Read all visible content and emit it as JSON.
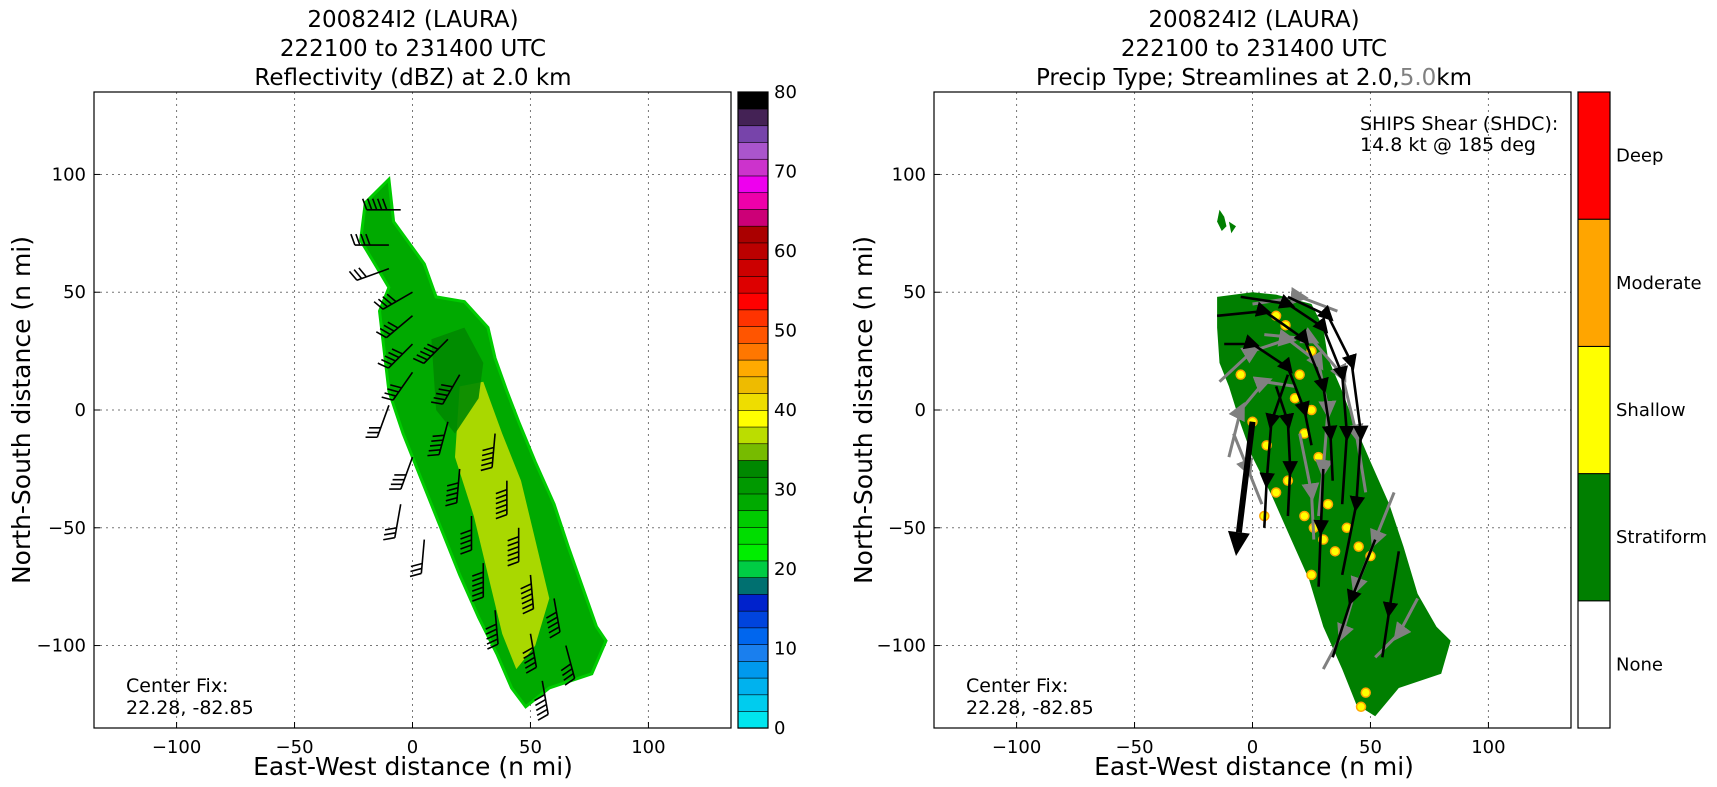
{
  "chart_data": [
    {
      "type": "heatmap",
      "title_lines": [
        "200824I2 (LAURA)",
        "222100 to 231400 UTC",
        "Reflectivity (dBZ) at 2.0 km"
      ],
      "xlabel": "East-West distance (n mi)",
      "ylabel": "North-South distance (n mi)",
      "xlim": [
        -135,
        135
      ],
      "ylim": [
        -135,
        135
      ],
      "xticks": [
        -100,
        -50,
        0,
        50,
        100
      ],
      "yticks": [
        -100,
        -50,
        0,
        50,
        100
      ],
      "grid": true,
      "annotation_lines": [
        "Center Fix:",
        "22.28, -82.85"
      ],
      "colorbar": {
        "range": [
          0,
          80
        ],
        "ticks": [
          0,
          10,
          20,
          30,
          40,
          50,
          60,
          70,
          80
        ],
        "colors": [
          "#00e5ee",
          "#00ccee",
          "#00b2ee",
          "#0099ee",
          "#1a7fee",
          "#0066ee",
          "#0044dd",
          "#0022cc",
          "#007070",
          "#00cc44",
          "#00ee00",
          "#00dd00",
          "#00cc00",
          "#00aa00",
          "#009900",
          "#008800",
          "#77bb00",
          "#bbdd00",
          "#ffff00",
          "#eedd00",
          "#eebb00",
          "#ffaa00",
          "#ff7700",
          "#ff5500",
          "#ff3300",
          "#ff0000",
          "#dd0000",
          "#cc0000",
          "#bb0000",
          "#aa0000",
          "#cc0077",
          "#ee00aa",
          "#ee00ee",
          "#cc33cc",
          "#aa55cc",
          "#7744aa",
          "#442255",
          "#000000"
        ]
      },
      "echo_region_polygon": [
        [
          -20,
          88
        ],
        [
          -10,
          98
        ],
        [
          -8,
          80
        ],
        [
          5,
          62
        ],
        [
          10,
          48
        ],
        [
          22,
          46
        ],
        [
          32,
          35
        ],
        [
          35,
          22
        ],
        [
          40,
          8
        ],
        [
          45,
          -5
        ],
        [
          52,
          -22
        ],
        [
          60,
          -40
        ],
        [
          66,
          -58
        ],
        [
          72,
          -75
        ],
        [
          78,
          -92
        ],
        [
          82,
          -98
        ],
        [
          76,
          -112
        ],
        [
          58,
          -118
        ],
        [
          48,
          -126
        ],
        [
          42,
          -118
        ],
        [
          36,
          -104
        ],
        [
          28,
          -88
        ],
        [
          20,
          -70
        ],
        [
          12,
          -50
        ],
        [
          4,
          -30
        ],
        [
          -4,
          -10
        ],
        [
          -10,
          8
        ],
        [
          -12,
          25
        ],
        [
          -14,
          42
        ],
        [
          -10,
          52
        ],
        [
          -16,
          62
        ],
        [
          -22,
          72
        ]
      ],
      "core_regions_dbz": [
        {
          "dbz": 36,
          "polygon": [
            [
              20,
              10
            ],
            [
              30,
              12
            ],
            [
              38,
              -10
            ],
            [
              46,
              -30
            ],
            [
              52,
              -55
            ],
            [
              58,
              -80
            ],
            [
              52,
              -100
            ],
            [
              44,
              -110
            ],
            [
              38,
              -95
            ],
            [
              32,
              -70
            ],
            [
              26,
              -45
            ],
            [
              18,
              -20
            ]
          ]
        },
        {
          "dbz": 32,
          "polygon": [
            [
              8,
              30
            ],
            [
              22,
              35
            ],
            [
              30,
              20
            ],
            [
              28,
              5
            ],
            [
              18,
              -10
            ],
            [
              10,
              0
            ]
          ]
        }
      ],
      "wind_barbs": [
        {
          "x": -5,
          "y": 85,
          "dir_deg": 270,
          "kt": 45
        },
        {
          "x": -10,
          "y": 70,
          "dir_deg": 270,
          "kt": 40
        },
        {
          "x": -10,
          "y": 60,
          "dir_deg": 250,
          "kt": 30
        },
        {
          "x": 0,
          "y": 50,
          "dir_deg": 240,
          "kt": 35
        },
        {
          "x": 0,
          "y": 40,
          "dir_deg": 230,
          "kt": 40
        },
        {
          "x": 0,
          "y": 28,
          "dir_deg": 225,
          "kt": 45
        },
        {
          "x": 0,
          "y": 16,
          "dir_deg": 215,
          "kt": 40
        },
        {
          "x": -10,
          "y": 2,
          "dir_deg": 200,
          "kt": 30
        },
        {
          "x": 15,
          "y": 30,
          "dir_deg": 225,
          "kt": 50
        },
        {
          "x": 20,
          "y": 15,
          "dir_deg": 210,
          "kt": 45
        },
        {
          "x": 0,
          "y": -20,
          "dir_deg": 200,
          "kt": 35
        },
        {
          "x": -5,
          "y": -40,
          "dir_deg": 190,
          "kt": 30
        },
        {
          "x": 5,
          "y": -55,
          "dir_deg": 185,
          "kt": 30
        },
        {
          "x": 15,
          "y": -5,
          "dir_deg": 195,
          "kt": 45
        },
        {
          "x": 20,
          "y": -25,
          "dir_deg": 185,
          "kt": 50
        },
        {
          "x": 25,
          "y": -45,
          "dir_deg": 180,
          "kt": 50
        },
        {
          "x": 30,
          "y": -65,
          "dir_deg": 180,
          "kt": 55
        },
        {
          "x": 35,
          "y": -85,
          "dir_deg": 175,
          "kt": 50
        },
        {
          "x": 35,
          "y": -10,
          "dir_deg": 185,
          "kt": 50
        },
        {
          "x": 40,
          "y": -30,
          "dir_deg": 180,
          "kt": 55
        },
        {
          "x": 45,
          "y": -50,
          "dir_deg": 180,
          "kt": 55
        },
        {
          "x": 50,
          "y": -70,
          "dir_deg": 175,
          "kt": 55
        },
        {
          "x": 50,
          "y": -95,
          "dir_deg": 170,
          "kt": 50
        },
        {
          "x": 55,
          "y": -115,
          "dir_deg": 170,
          "kt": 45
        },
        {
          "x": 60,
          "y": -80,
          "dir_deg": 170,
          "kt": 45
        },
        {
          "x": 65,
          "y": -100,
          "dir_deg": 165,
          "kt": 40
        }
      ]
    },
    {
      "type": "heatmap",
      "title_lines": [
        "200824I2 (LAURA)",
        "222100 to 231400 UTC",
        "Precip Type; Streamlines at 2.0,"
      ],
      "title_extra": "5.0",
      "title_unit": "km",
      "xlabel": "East-West distance (n mi)",
      "ylabel": "North-South distance (n mi)",
      "xlim": [
        -135,
        135
      ],
      "ylim": [
        -135,
        135
      ],
      "xticks": [
        -100,
        -50,
        0,
        50,
        100
      ],
      "yticks": [
        -100,
        -50,
        0,
        50,
        100
      ],
      "grid": true,
      "annotation_lines": [
        "Center Fix:",
        "22.28, -82.85"
      ],
      "shear_lines": [
        "SHIPS Shear (SHDC):",
        "14.8 kt @ 185 deg"
      ],
      "shear_vector": {
        "from": [
          0,
          -5
        ],
        "to": [
          -7,
          -62
        ]
      },
      "categories": [
        "None",
        "Stratiform",
        "Shallow",
        "Moderate",
        "Deep"
      ],
      "category_colors": [
        "#ffffff",
        "#007f00",
        "#ffff00",
        "#ffa500",
        "#ff0000"
      ],
      "stratiform_polygon": [
        [
          -15,
          48
        ],
        [
          0,
          50
        ],
        [
          10,
          49
        ],
        [
          25,
          45
        ],
        [
          30,
          35
        ],
        [
          32,
          22
        ],
        [
          38,
          8
        ],
        [
          44,
          -8
        ],
        [
          50,
          -22
        ],
        [
          58,
          -40
        ],
        [
          64,
          -58
        ],
        [
          70,
          -78
        ],
        [
          78,
          -92
        ],
        [
          84,
          -98
        ],
        [
          80,
          -112
        ],
        [
          62,
          -118
        ],
        [
          52,
          -130
        ],
        [
          44,
          -125
        ],
        [
          38,
          -110
        ],
        [
          30,
          -92
        ],
        [
          24,
          -72
        ],
        [
          16,
          -54
        ],
        [
          8,
          -36
        ],
        [
          0,
          -20
        ],
        [
          -5,
          -6
        ],
        [
          -10,
          10
        ],
        [
          -14,
          20
        ],
        [
          -15,
          35
        ]
      ],
      "stratiform_fragments": [
        [
          [
            -14,
            85
          ],
          [
            -12,
            82
          ],
          [
            -11,
            78
          ],
          [
            -13,
            76
          ],
          [
            -15,
            80
          ]
        ],
        [
          [
            -10,
            80
          ],
          [
            -7,
            78
          ],
          [
            -9,
            75
          ]
        ]
      ],
      "shallow_cells": [
        [
          20,
          15
        ],
        [
          18,
          5
        ],
        [
          25,
          0
        ],
        [
          22,
          -10
        ],
        [
          28,
          -20
        ],
        [
          15,
          -30
        ],
        [
          10,
          -35
        ],
        [
          5,
          -45
        ],
        [
          22,
          -45
        ],
        [
          26,
          -50
        ],
        [
          30,
          -55
        ],
        [
          35,
          -60
        ],
        [
          25,
          -70
        ],
        [
          40,
          -50
        ],
        [
          45,
          -58
        ],
        [
          50,
          -62
        ],
        [
          48,
          -120
        ],
        [
          46,
          -126
        ],
        [
          10,
          40
        ],
        [
          14,
          36
        ],
        [
          25,
          25
        ],
        [
          -5,
          15
        ],
        [
          0,
          -5
        ],
        [
          6,
          -15
        ],
        [
          32,
          -40
        ]
      ],
      "streamlines_2km": [
        [
          [
            -12,
            28
          ],
          [
            0,
            28
          ],
          [
            15,
            18
          ],
          [
            22,
            0
          ],
          [
            25,
            -15
          ]
        ],
        [
          [
            -15,
            40
          ],
          [
            5,
            42
          ],
          [
            22,
            30
          ],
          [
            30,
            10
          ],
          [
            33,
            -10
          ],
          [
            34,
            -30
          ]
        ],
        [
          [
            -5,
            48
          ],
          [
            15,
            45
          ],
          [
            30,
            35
          ],
          [
            38,
            15
          ],
          [
            40,
            -10
          ],
          [
            38,
            -40
          ]
        ],
        [
          [
            15,
            48
          ],
          [
            32,
            40
          ],
          [
            42,
            20
          ],
          [
            46,
            -10
          ],
          [
            44,
            -40
          ],
          [
            38,
            -70
          ]
        ],
        [
          [
            10,
            10
          ],
          [
            15,
            -5
          ],
          [
            16,
            -25
          ],
          [
            15,
            -45
          ]
        ],
        [
          [
            52,
            -55
          ],
          [
            42,
            -80
          ],
          [
            34,
            -105
          ]
        ],
        [
          [
            62,
            -60
          ],
          [
            58,
            -85
          ],
          [
            55,
            -105
          ]
        ],
        [
          [
            15,
            15
          ],
          [
            8,
            -5
          ],
          [
            6,
            -30
          ],
          [
            5,
            -50
          ]
        ],
        [
          [
            30,
            -25
          ],
          [
            29,
            -50
          ],
          [
            28,
            -75
          ]
        ]
      ],
      "streamlines_5km": [
        [
          [
            -14,
            12
          ],
          [
            0,
            25
          ],
          [
            15,
            30
          ],
          [
            28,
            20
          ],
          [
            32,
            0
          ],
          [
            30,
            -25
          ],
          [
            28,
            -45
          ]
        ],
        [
          [
            -10,
            -20
          ],
          [
            -5,
            0
          ],
          [
            5,
            12
          ],
          [
            18,
            10
          ]
        ],
        [
          [
            0,
            45
          ],
          [
            20,
            48
          ],
          [
            36,
            42
          ]
        ],
        [
          [
            5,
            32
          ],
          [
            25,
            30
          ],
          [
            38,
            15
          ],
          [
            44,
            -10
          ],
          [
            48,
            -35
          ]
        ],
        [
          [
            60,
            -35
          ],
          [
            52,
            -55
          ],
          [
            44,
            -75
          ],
          [
            38,
            -95
          ],
          [
            30,
            -110
          ]
        ],
        [
          [
            70,
            -80
          ],
          [
            62,
            -95
          ],
          [
            52,
            -105
          ]
        ],
        [
          [
            20,
            -10
          ],
          [
            25,
            -35
          ],
          [
            26,
            -55
          ]
        ],
        [
          [
            -8,
            -10
          ],
          [
            -2,
            -25
          ],
          [
            4,
            -40
          ]
        ]
      ]
    }
  ]
}
